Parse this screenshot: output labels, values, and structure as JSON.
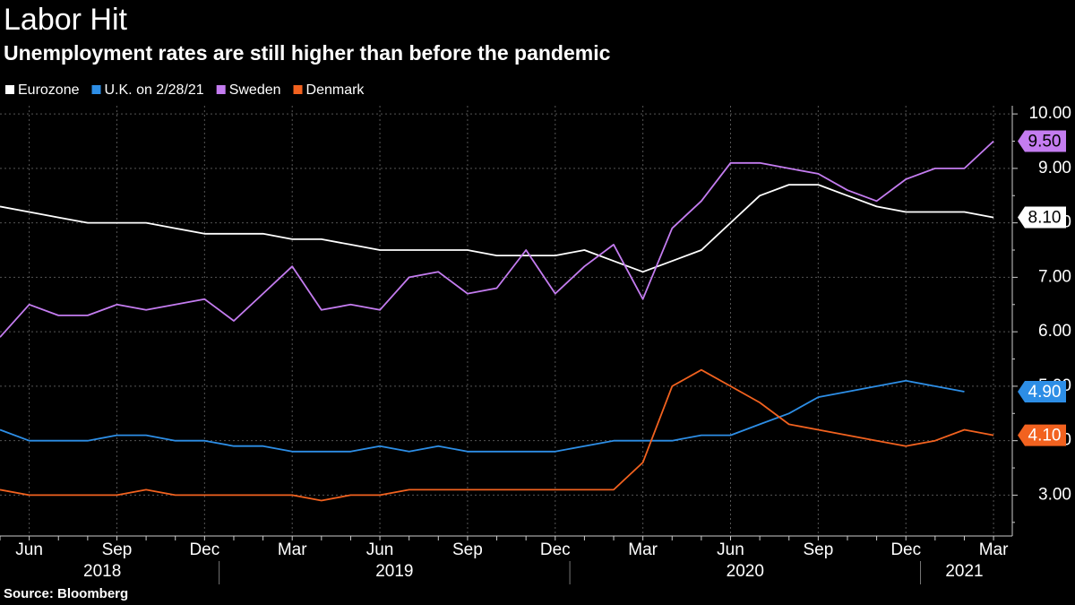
{
  "chart_data": {
    "type": "line",
    "title": "Labor Hit",
    "subtitle": "Unemployment rates are still higher than before the pandemic",
    "source": "Source: Bloomberg",
    "categories": [
      null,
      "Jun",
      null,
      null,
      "Sep",
      null,
      null,
      "Dec",
      null,
      null,
      "Mar",
      null,
      null,
      "Jun",
      null,
      null,
      "Sep",
      null,
      null,
      "Dec",
      null,
      null,
      "Mar",
      null,
      null,
      "Jun",
      null,
      null,
      "Sep",
      null,
      null,
      "Dec",
      null,
      null,
      "Mar"
    ],
    "years": [
      "2018",
      "2019",
      "2020",
      "2021"
    ],
    "ylim": [
      2.25,
      10.15
    ],
    "yticks": [
      {
        "value": 3,
        "label": "3.00"
      },
      {
        "value": 4,
        "label": "4.00"
      },
      {
        "value": 5,
        "label": "5.00"
      },
      {
        "value": 6,
        "label": "6.00"
      },
      {
        "value": 7,
        "label": "7.00"
      },
      {
        "value": 8,
        "label": "8.00"
      },
      {
        "value": 9,
        "label": "9.00"
      },
      {
        "value": 10,
        "label": "10.00"
      }
    ],
    "grid": true,
    "series": [
      {
        "name": "Eurozone",
        "color": "#ffffff",
        "values": [
          8.3,
          8.2,
          8.1,
          8.0,
          8.0,
          8.0,
          7.9,
          7.8,
          7.8,
          7.8,
          7.7,
          7.7,
          7.6,
          7.5,
          7.5,
          7.5,
          7.5,
          7.4,
          7.4,
          7.4,
          7.5,
          7.3,
          7.1,
          7.3,
          7.5,
          8.0,
          8.5,
          8.7,
          8.7,
          8.5,
          8.3,
          8.2,
          8.2,
          8.2,
          8.1
        ],
        "value_labels": [
          null,
          null,
          null,
          null,
          null,
          null,
          null,
          null,
          null,
          null,
          null,
          null,
          null,
          null,
          null,
          null,
          null,
          null,
          null,
          null,
          null,
          null,
          null,
          null,
          null,
          null,
          null,
          null,
          null,
          null,
          null,
          null,
          null,
          null,
          "8.10"
        ]
      },
      {
        "name": "U.K. on 2/28/21",
        "color": "#2d8ee6",
        "values": [
          4.2,
          4.0,
          4.0,
          4.0,
          4.1,
          4.1,
          4.0,
          4.0,
          3.9,
          3.9,
          3.8,
          3.8,
          3.8,
          3.9,
          3.8,
          3.9,
          3.8,
          3.8,
          3.8,
          3.8,
          3.9,
          4.0,
          4.0,
          4.0,
          4.1,
          4.1,
          4.3,
          4.5,
          4.8,
          4.9,
          5.0,
          5.1,
          5.0,
          4.9,
          null
        ],
        "value_labels": [
          null,
          null,
          null,
          null,
          null,
          null,
          null,
          null,
          null,
          null,
          null,
          null,
          null,
          null,
          null,
          null,
          null,
          null,
          null,
          null,
          null,
          null,
          null,
          null,
          null,
          null,
          null,
          null,
          null,
          null,
          null,
          null,
          null,
          "4.90",
          null
        ]
      },
      {
        "name": "Sweden",
        "color": "#c47cf0",
        "values": [
          5.9,
          6.5,
          6.3,
          6.3,
          6.5,
          6.4,
          6.5,
          6.6,
          6.2,
          6.7,
          7.2,
          6.4,
          6.5,
          6.4,
          7.0,
          7.1,
          6.7,
          6.8,
          7.5,
          6.7,
          7.2,
          7.6,
          6.6,
          7.9,
          8.4,
          9.1,
          9.1,
          9.0,
          8.9,
          8.6,
          8.4,
          8.8,
          9.0,
          9.0,
          9.5
        ],
        "value_labels": [
          null,
          null,
          null,
          null,
          null,
          null,
          null,
          null,
          null,
          null,
          null,
          null,
          null,
          null,
          null,
          null,
          null,
          null,
          null,
          null,
          null,
          null,
          null,
          null,
          null,
          null,
          null,
          null,
          null,
          null,
          null,
          null,
          null,
          null,
          "9.50"
        ]
      },
      {
        "name": "Denmark",
        "color": "#f2621f",
        "values": [
          3.1,
          3.0,
          3.0,
          3.0,
          3.0,
          3.1,
          3.0,
          3.0,
          3.0,
          3.0,
          3.0,
          2.9,
          3.0,
          3.0,
          3.1,
          3.1,
          3.1,
          3.1,
          3.1,
          3.1,
          3.1,
          3.1,
          3.6,
          5.0,
          5.3,
          5.0,
          4.7,
          4.3,
          4.2,
          4.1,
          4.0,
          3.9,
          4.0,
          4.2,
          4.1
        ],
        "value_labels": [
          null,
          null,
          null,
          null,
          null,
          null,
          null,
          null,
          null,
          null,
          null,
          null,
          null,
          null,
          null,
          null,
          null,
          null,
          null,
          null,
          null,
          null,
          null,
          null,
          null,
          null,
          null,
          null,
          null,
          null,
          null,
          null,
          null,
          null,
          "4.10"
        ]
      }
    ]
  }
}
